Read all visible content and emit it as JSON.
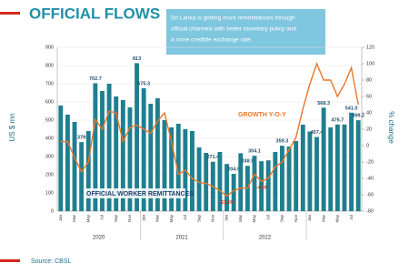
{
  "chart_data": {
    "type": "bar_line",
    "title": "OFFICIAL FLOWS",
    "callout_lines": [
      "Sri Lanka is getting more remmittances through",
      "official channels with better monetary policy and",
      "a more credible exchange rate."
    ],
    "ylabel": "US $ mn",
    "y2label": "% change",
    "source": "Source: CBSL",
    "categories": [
      "Jan",
      null,
      "Mar",
      null,
      "May",
      null,
      "Jul",
      null,
      "Sep",
      null,
      "Nov",
      null,
      "Jan",
      null,
      "Mar",
      null,
      "May",
      null,
      "Jul",
      null,
      "Sep",
      null,
      "Nov",
      null,
      "Jan",
      null,
      "Mar",
      null,
      "May",
      null,
      "Jul",
      null,
      "Sep",
      null,
      "Nov",
      null,
      "Jan",
      null,
      "Mar",
      null,
      "May",
      null,
      "Jul",
      null
    ],
    "year_labels": [
      "2020",
      "2021",
      "2022"
    ],
    "series": [
      {
        "name": "OFFICIAL WORKER REMITTANCES",
        "color": "#1f7f8e",
        "values": [
          580,
          530,
          490,
          379,
          440,
          702.7,
          660,
          700,
          630,
          610,
          570,
          813,
          675.3,
          590,
          620,
          500,
          460,
          480,
          450,
          440,
          350,
          320,
          271.4,
          325,
          259,
          204.9,
          318,
          248.9,
          304.1,
          274,
          279,
          325,
          359.3,
          355,
          385,
          475,
          437.5,
          407.4,
          568.3,
          460,
          475.7,
          476,
          541.0,
          499.2
        ],
        "value_labels": [
          null,
          null,
          null,
          "379",
          null,
          "702.7",
          null,
          null,
          null,
          null,
          null,
          "813",
          "675.3",
          null,
          null,
          null,
          null,
          null,
          null,
          null,
          null,
          null,
          "271.4",
          null,
          null,
          "204.9",
          null,
          "248.9",
          "304.1",
          null,
          null,
          null,
          "359.3",
          null,
          null,
          null,
          null,
          "407.4",
          "568.3",
          null,
          "475.7",
          null,
          "541.0",
          "499.2"
        ]
      },
      {
        "name": "GROWTH Y-O-Y",
        "color": "#e8772a",
        "axis": "y2",
        "values": [
          5,
          5,
          -15,
          -32,
          -20,
          32,
          20,
          42,
          40,
          5,
          22,
          25,
          20,
          15,
          30,
          40,
          5,
          -35,
          -30,
          -40,
          -45,
          -46,
          -50,
          -55,
          -61.6,
          -55,
          -52,
          -52,
          -35,
          -43.6,
          -40,
          -26,
          -20,
          -5,
          10,
          45,
          75,
          100,
          80,
          80,
          60,
          75,
          95,
          50
        ],
        "value_labels": [
          null,
          null,
          null,
          null,
          null,
          null,
          null,
          null,
          null,
          null,
          null,
          null,
          null,
          null,
          null,
          null,
          null,
          null,
          null,
          null,
          null,
          null,
          null,
          null,
          "-61.6%",
          null,
          null,
          null,
          null,
          "-43.6",
          null,
          null,
          null,
          null,
          null,
          null,
          null,
          null,
          null,
          null,
          null,
          null,
          null,
          null
        ]
      }
    ],
    "ylim": [
      0,
      900
    ],
    "yticks": [
      0,
      100,
      200,
      300,
      400,
      500,
      600,
      700,
      800,
      900
    ],
    "y2lim": [
      -80,
      120
    ],
    "y2ticks": [
      -80,
      -60,
      -40,
      -20,
      0,
      20,
      40,
      60,
      80,
      100,
      120
    ]
  }
}
